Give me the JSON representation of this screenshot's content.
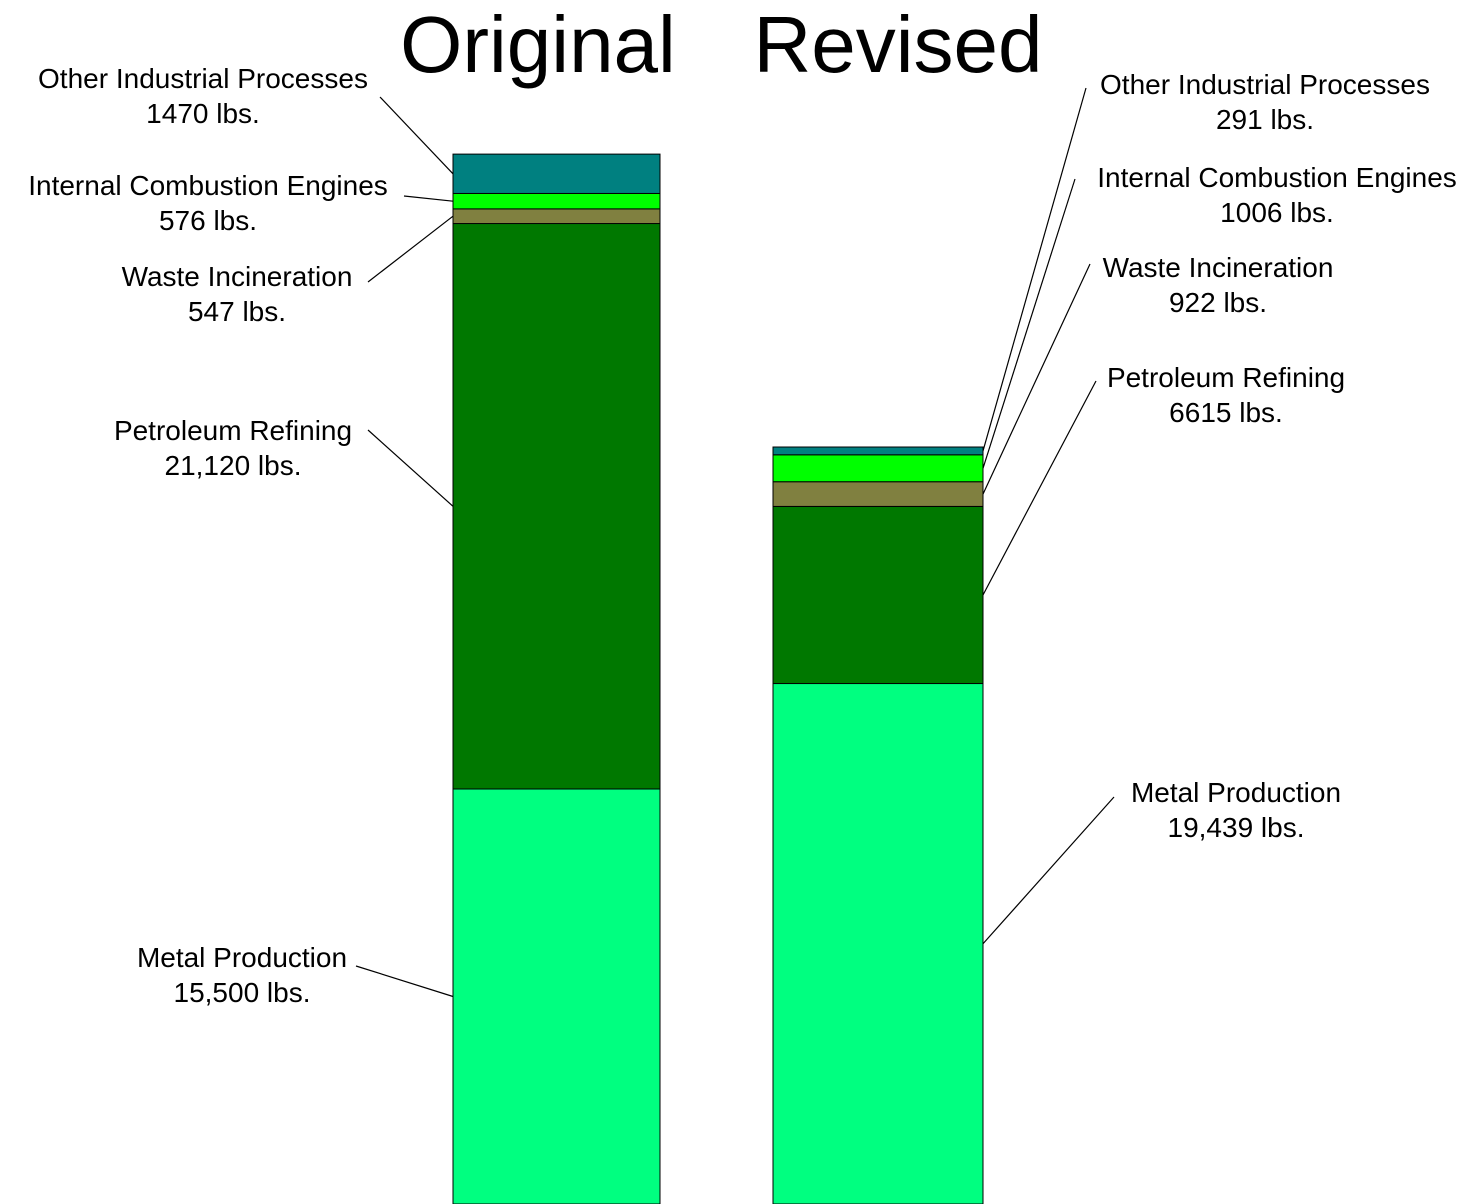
{
  "chart_data": {
    "type": "bar",
    "stacked": true,
    "unit": "lbs.",
    "grid": false,
    "legend": "none",
    "categories": [
      "Original",
      "Revised"
    ],
    "series": [
      {
        "name": "Metal Production",
        "color": "#00FF80",
        "values": [
          15500,
          19439
        ],
        "labels": [
          "15,500 lbs.",
          "19,439 lbs."
        ]
      },
      {
        "name": "Petroleum Refining",
        "color": "#007800",
        "values": [
          21120,
          6615
        ],
        "labels": [
          "21,120 lbs.",
          "6615 lbs."
        ]
      },
      {
        "name": "Waste Incineration",
        "color": "#808040",
        "values": [
          547,
          922
        ],
        "labels": [
          "547 lbs.",
          "922 lbs."
        ]
      },
      {
        "name": "Internal Combustion Engines",
        "color": "#00FF00",
        "values": [
          576,
          1006
        ],
        "labels": [
          "576 lbs.",
          "1006 lbs."
        ]
      },
      {
        "name": "Other Industrial Processes",
        "color": "#008080",
        "values": [
          1470,
          291
        ],
        "labels": [
          "1470 lbs.",
          "291 lbs."
        ]
      }
    ]
  }
}
